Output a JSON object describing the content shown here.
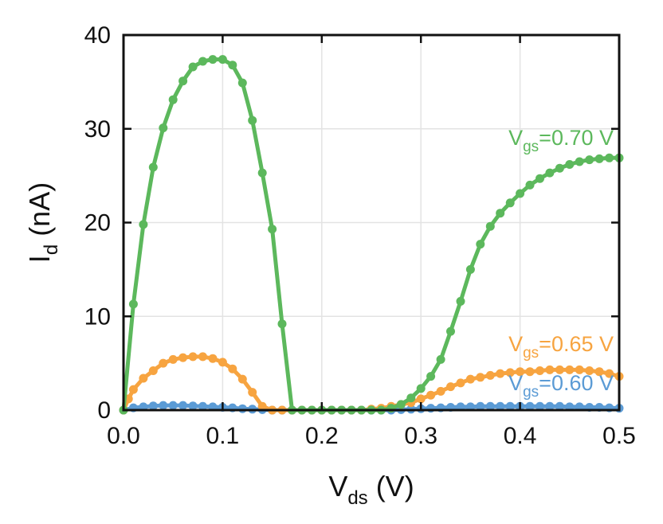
{
  "chart_data": {
    "type": "line",
    "title": "",
    "xlabel": {
      "main": "V",
      "sub": "ds",
      "unit": " (V)"
    },
    "ylabel": {
      "main": "I",
      "sub": "d",
      "unit": " (nA)"
    },
    "xlim": [
      0,
      0.5
    ],
    "ylim": [
      0,
      40
    ],
    "xticks": [
      "0.0",
      "0.1",
      "0.2",
      "0.3",
      "0.4",
      "0.5"
    ],
    "yticks": [
      "0",
      "10",
      "20",
      "30",
      "40"
    ],
    "grid": true,
    "series": [
      {
        "name": "Vgs=0.60 V",
        "label_main": "V",
        "label_sub": "gs",
        "label_value": "=0.60 V",
        "color": "#5b9bd5",
        "x": [
          0.0,
          0.01,
          0.02,
          0.03,
          0.04,
          0.05,
          0.06,
          0.07,
          0.08,
          0.09,
          0.1,
          0.11,
          0.12,
          0.13,
          0.14,
          0.15,
          0.16,
          0.17,
          0.18,
          0.19,
          0.2,
          0.21,
          0.22,
          0.23,
          0.24,
          0.25,
          0.26,
          0.27,
          0.28,
          0.29,
          0.3,
          0.31,
          0.32,
          0.33,
          0.34,
          0.35,
          0.36,
          0.37,
          0.38,
          0.39,
          0.4,
          0.41,
          0.42,
          0.43,
          0.44,
          0.45,
          0.46,
          0.47,
          0.48,
          0.49,
          0.5
        ],
        "y": [
          0.0,
          0.25,
          0.35,
          0.45,
          0.5,
          0.5,
          0.5,
          0.45,
          0.4,
          0.35,
          0.3,
          0.25,
          0.15,
          0.1,
          0.05,
          0.0,
          0.0,
          0.0,
          0.0,
          0.0,
          0.0,
          0.0,
          0.0,
          0.0,
          0.0,
          0.0,
          0.0,
          0.0,
          0.05,
          0.1,
          0.15,
          0.2,
          0.25,
          0.3,
          0.35,
          0.35,
          0.4,
          0.4,
          0.4,
          0.4,
          0.4,
          0.4,
          0.4,
          0.4,
          0.4,
          0.35,
          0.35,
          0.3,
          0.3,
          0.25,
          0.2
        ]
      },
      {
        "name": "Vgs=0.65 V",
        "label_main": "V",
        "label_sub": "gs",
        "label_value": "=0.65 V",
        "color": "#f7a440",
        "x": [
          0.0,
          0.005,
          0.01,
          0.02,
          0.03,
          0.04,
          0.05,
          0.06,
          0.07,
          0.08,
          0.09,
          0.1,
          0.11,
          0.12,
          0.13,
          0.14,
          0.15,
          0.16,
          0.17,
          0.18,
          0.19,
          0.2,
          0.21,
          0.22,
          0.23,
          0.24,
          0.25,
          0.26,
          0.27,
          0.28,
          0.29,
          0.3,
          0.31,
          0.32,
          0.33,
          0.34,
          0.35,
          0.36,
          0.37,
          0.38,
          0.39,
          0.4,
          0.41,
          0.42,
          0.43,
          0.44,
          0.45,
          0.46,
          0.47,
          0.48,
          0.49,
          0.5
        ],
        "y": [
          0.0,
          1.2,
          2.2,
          3.4,
          4.2,
          5.0,
          5.4,
          5.6,
          5.7,
          5.7,
          5.5,
          5.1,
          4.4,
          3.3,
          1.9,
          0.4,
          0.0,
          0.0,
          0.0,
          0.0,
          0.0,
          0.0,
          0.0,
          0.0,
          0.0,
          0.0,
          0.1,
          0.2,
          0.4,
          0.6,
          0.8,
          1.2,
          1.6,
          2.0,
          2.5,
          2.9,
          3.3,
          3.5,
          3.7,
          3.9,
          4.0,
          4.1,
          4.1,
          4.2,
          4.3,
          4.3,
          4.3,
          4.3,
          4.2,
          4.1,
          3.9,
          3.6
        ]
      },
      {
        "name": "Vgs=0.70 V",
        "label_main": "V",
        "label_sub": "gs",
        "label_value": "=0.70 V",
        "color": "#5cb85c",
        "x": [
          0.0,
          0.01,
          0.02,
          0.03,
          0.04,
          0.05,
          0.06,
          0.07,
          0.08,
          0.09,
          0.1,
          0.11,
          0.12,
          0.13,
          0.14,
          0.15,
          0.16,
          0.17,
          0.18,
          0.19,
          0.2,
          0.21,
          0.22,
          0.23,
          0.24,
          0.25,
          0.26,
          0.27,
          0.28,
          0.29,
          0.3,
          0.31,
          0.32,
          0.33,
          0.34,
          0.35,
          0.36,
          0.37,
          0.38,
          0.39,
          0.4,
          0.41,
          0.42,
          0.43,
          0.44,
          0.45,
          0.46,
          0.47,
          0.48,
          0.49,
          0.5
        ],
        "y": [
          0.0,
          11.3,
          19.8,
          25.9,
          30.1,
          33.1,
          35.1,
          36.6,
          37.2,
          37.4,
          37.4,
          36.8,
          34.9,
          30.9,
          25.3,
          19.3,
          9.2,
          0.0,
          0.0,
          0.0,
          0.0,
          0.0,
          0.0,
          0.0,
          0.0,
          0.0,
          0.0,
          0.2,
          0.6,
          1.3,
          2.3,
          3.6,
          5.4,
          8.4,
          11.6,
          15.0,
          17.7,
          19.6,
          21.0,
          22.1,
          23.1,
          24.0,
          24.7,
          25.3,
          25.8,
          26.2,
          26.5,
          26.7,
          26.8,
          26.9,
          26.9
        ]
      }
    ]
  }
}
